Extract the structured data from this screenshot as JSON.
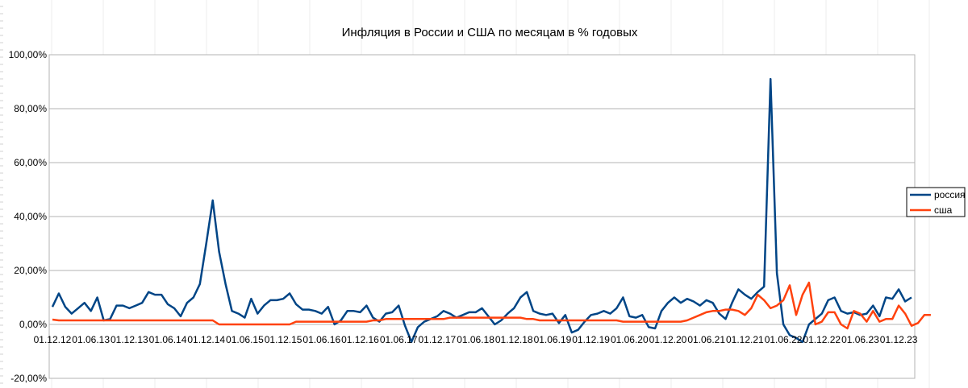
{
  "chart_data": {
    "type": "line",
    "title": "Инфляция в России и США по месяцам в % годовых",
    "xlabel": "",
    "ylabel": "",
    "ylim": [
      -20,
      100
    ],
    "y_ticks": [
      "-20,00%",
      "0,00%",
      "20,00%",
      "40,00%",
      "60,00%",
      "80,00%",
      "100,00%"
    ],
    "x_tick_labels": [
      "01.12.12",
      "01.06.13",
      "01.12.13",
      "01.06.14",
      "01.12.14",
      "01.06.15",
      "01.12.15",
      "01.06.16",
      "01.12.16",
      "01.06.17",
      "01.12.17",
      "01.06.18",
      "01.12.18",
      "01.06.19",
      "01.12.19",
      "01.06.20",
      "01.12.20",
      "01.06.21",
      "01.12.21",
      "01.06.22",
      "01.12.22",
      "01.06.23",
      "01.12.23"
    ],
    "grid": "horizontal",
    "legend_position": "right",
    "colors": {
      "россия": "#004586",
      "сша": "#ff420e"
    },
    "series": [
      {
        "name": "россия",
        "values": [
          6.5,
          11.5,
          6.5,
          4.0,
          6.0,
          8.0,
          5.0,
          10.0,
          1.5,
          2.0,
          7.0,
          7.0,
          6.0,
          7.0,
          8.0,
          12.0,
          11.0,
          11.0,
          7.5,
          6.0,
          3.0,
          8.0,
          10.0,
          15.0,
          30.0,
          46.0,
          27.0,
          15.0,
          5.0,
          4.0,
          2.5,
          9.5,
          4.0,
          7.0,
          9.0,
          9.0,
          9.5,
          11.5,
          7.5,
          5.5,
          5.5,
          5.0,
          4.0,
          6.5,
          0.0,
          1.5,
          5.0,
          5.0,
          4.5,
          7.0,
          2.5,
          1.0,
          4.0,
          4.5,
          7.0,
          -0.5,
          -6.5,
          -1.0,
          1.0,
          2.0,
          3.0,
          5.0,
          4.0,
          2.5,
          3.5,
          4.5,
          4.5,
          6.0,
          3.0,
          0.0,
          1.5,
          4.0,
          6.0,
          10.0,
          12.0,
          5.0,
          4.0,
          3.5,
          4.0,
          0.5,
          3.5,
          -3.0,
          -2.0,
          1.0,
          3.5,
          4.0,
          5.0,
          4.0,
          6.0,
          10.0,
          3.0,
          2.5,
          3.5,
          -1.0,
          -1.5,
          5.0,
          8.0,
          10.0,
          8.0,
          9.5,
          8.5,
          7.0,
          9.0,
          8.0,
          4.0,
          2.0,
          8.0,
          13.0,
          11.0,
          9.5,
          12.0,
          14.0,
          91.0,
          19.0,
          0.0,
          -4.0,
          -5.0,
          -6.5,
          0.0,
          2.0,
          4.0,
          9.0,
          10.0,
          5.0,
          4.0,
          4.5,
          3.5,
          4.0,
          7.0,
          3.0,
          10.0,
          9.5,
          13.0,
          8.5,
          10.0
        ]
      },
      {
        "name": "сша",
        "values": [
          1.8,
          1.5,
          1.5,
          1.5,
          1.5,
          1.5,
          1.5,
          1.5,
          1.5,
          1.5,
          1.5,
          1.5,
          1.5,
          1.5,
          1.5,
          1.5,
          1.5,
          1.5,
          1.5,
          1.5,
          1.5,
          1.5,
          1.5,
          1.5,
          1.5,
          1.5,
          0.0,
          0.0,
          0.0,
          0.0,
          0.0,
          0.0,
          0.0,
          0.0,
          0.0,
          0.0,
          0.0,
          0.0,
          1.0,
          1.0,
          1.0,
          1.0,
          1.0,
          1.0,
          1.0,
          1.0,
          1.0,
          1.0,
          1.0,
          1.0,
          1.5,
          1.5,
          2.0,
          2.0,
          2.0,
          2.0,
          2.0,
          2.0,
          2.0,
          2.0,
          2.0,
          2.0,
          2.5,
          2.5,
          2.5,
          2.5,
          2.5,
          2.5,
          2.5,
          2.5,
          2.5,
          2.5,
          2.5,
          2.5,
          2.0,
          2.0,
          1.5,
          1.5,
          1.5,
          1.5,
          1.5,
          1.5,
          1.5,
          1.5,
          1.5,
          1.5,
          1.5,
          1.5,
          1.5,
          1.0,
          1.0,
          1.0,
          1.0,
          1.0,
          1.0,
          1.0,
          1.0,
          1.0,
          1.0,
          1.5,
          2.5,
          3.5,
          4.5,
          5.0,
          5.0,
          5.5,
          5.5,
          5.0,
          3.5,
          6.0,
          11.0,
          9.0,
          6.0,
          7.0,
          9.0,
          14.5,
          3.5,
          11.0,
          15.5,
          0.0,
          1.0,
          4.5,
          4.5,
          0.0,
          -1.5,
          5.0,
          4.0,
          1.0,
          5.0,
          1.0,
          2.0,
          2.0,
          7.0,
          4.0,
          -0.5,
          0.5,
          3.5,
          3.5
        ]
      }
    ]
  }
}
